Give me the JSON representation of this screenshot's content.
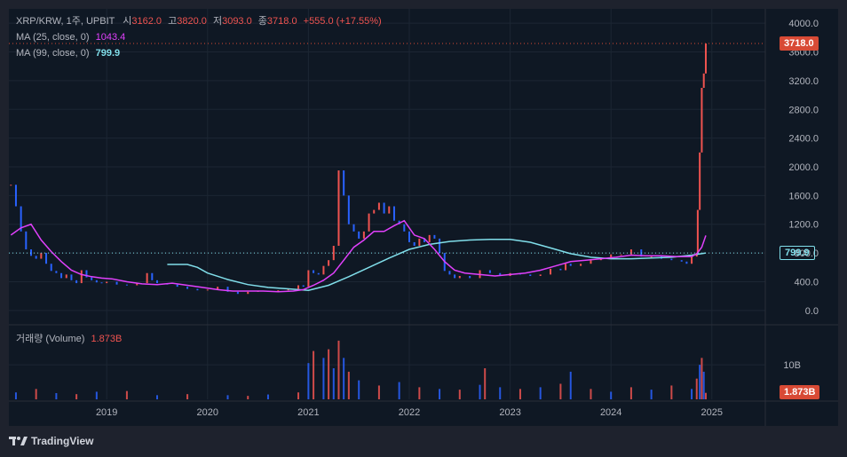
{
  "header": {
    "symbol": "XRP/KRW, 1주, UPBIT",
    "open_label": "시",
    "open": "3162.0",
    "high_label": "고",
    "high": "3820.0",
    "low_label": "저",
    "low": "3093.0",
    "close_label": "종",
    "close": "3718.0",
    "change": "+555.0 (+17.55%)",
    "ma25_label": "MA (25, close, 0)",
    "ma25_value": "1043.4",
    "ma99_label": "MA (99, close, 0)",
    "ma99_value": "799.9",
    "volume_label": "거래량 (Volume)",
    "volume_value": "1.873B"
  },
  "tags": {
    "last_price": "3718.0",
    "ma99": "799.9",
    "volume": "1.873B"
  },
  "footer": {
    "brand": "TradingView"
  },
  "colors": {
    "up": "#ef5350",
    "down": "#2962ff",
    "ma25": "#e040fb",
    "ma99": "#80deea",
    "background": "#0f1824",
    "grid": "#1c2633"
  },
  "chart_data": {
    "type": "candlestick",
    "timeframe": "1주",
    "price_axis": {
      "ticks": [
        "4000.0",
        "3600.0",
        "3200.0",
        "2800.0",
        "2400.0",
        "2000.0",
        "1600.0",
        "1200.0",
        "800.0",
        "400.0",
        "0.0"
      ],
      "range": [
        -200,
        4200
      ]
    },
    "volume_axis": {
      "ticks": [
        "10B"
      ],
      "range": [
        0,
        18
      ]
    },
    "time_axis": {
      "ticks": [
        "2019",
        "2020",
        "2021",
        "2022",
        "2023",
        "2024",
        "2025"
      ],
      "range": [
        2018.03,
        2025.53
      ]
    },
    "last_price": 3718.0,
    "price_series": {
      "x": [
        2018.05,
        2018.1,
        2018.15,
        2018.2,
        2018.25,
        2018.3,
        2018.35,
        2018.4,
        2018.45,
        2018.5,
        2018.55,
        2018.6,
        2018.65,
        2018.7,
        2018.75,
        2018.8,
        2018.85,
        2018.9,
        2018.95,
        2019.0,
        2019.1,
        2019.2,
        2019.3,
        2019.4,
        2019.45,
        2019.5,
        2019.6,
        2019.7,
        2019.8,
        2019.9,
        2020.0,
        2020.1,
        2020.2,
        2020.3,
        2020.4,
        2020.5,
        2020.6,
        2020.7,
        2020.8,
        2020.85,
        2020.9,
        2020.95,
        2021.0,
        2021.05,
        2021.1,
        2021.15,
        2021.2,
        2021.25,
        2021.3,
        2021.35,
        2021.4,
        2021.45,
        2021.5,
        2021.55,
        2021.6,
        2021.65,
        2021.7,
        2021.75,
        2021.8,
        2021.85,
        2021.9,
        2021.95,
        2022.0,
        2022.05,
        2022.1,
        2022.15,
        2022.2,
        2022.25,
        2022.3,
        2022.35,
        2022.4,
        2022.45,
        2022.5,
        2022.6,
        2022.7,
        2022.8,
        2022.9,
        2023.0,
        2023.1,
        2023.2,
        2023.3,
        2023.4,
        2023.5,
        2023.55,
        2023.6,
        2023.7,
        2023.8,
        2023.9,
        2024.0,
        2024.1,
        2024.2,
        2024.3,
        2024.4,
        2024.5,
        2024.6,
        2024.7,
        2024.75,
        2024.8,
        2024.85,
        2024.86,
        2024.88,
        2024.9,
        2024.92,
        2024.94
      ],
      "close": [
        1750,
        1450,
        1100,
        850,
        760,
        720,
        800,
        650,
        550,
        520,
        450,
        500,
        420,
        380,
        560,
        460,
        420,
        390,
        380,
        400,
        360,
        350,
        380,
        520,
        420,
        380,
        360,
        330,
        300,
        280,
        290,
        330,
        260,
        230,
        260,
        270,
        260,
        280,
        300,
        300,
        350,
        330,
        560,
        520,
        500,
        620,
        700,
        900,
        1950,
        1600,
        1200,
        1100,
        1000,
        1100,
        1350,
        1400,
        1500,
        1350,
        1450,
        1250,
        1200,
        1100,
        950,
        900,
        1000,
        950,
        1050,
        1000,
        800,
        550,
        500,
        450,
        480,
        450,
        560,
        520,
        480,
        520,
        500,
        480,
        500,
        580,
        560,
        650,
        620,
        650,
        700,
        720,
        780,
        780,
        850,
        750,
        750,
        720,
        700,
        680,
        650,
        750,
        800,
        1400,
        2200,
        3100,
        3300,
        3718
      ],
      "ma25": {
        "x": [
          2018.05,
          2018.15,
          2018.25,
          2018.35,
          2018.45,
          2018.55,
          2018.65,
          2018.75,
          2018.85,
          2018.95,
          2019.05,
          2019.2,
          2019.35,
          2019.5,
          2019.65,
          2019.8,
          2019.95,
          2020.1,
          2020.25,
          2020.4,
          2020.55,
          2020.7,
          2020.85,
          2020.95,
          2021.05,
          2021.15,
          2021.25,
          2021.35,
          2021.45,
          2021.55,
          2021.65,
          2021.75,
          2021.85,
          2021.95,
          2022.05,
          2022.15,
          2022.25,
          2022.35,
          2022.45,
          2022.55,
          2022.7,
          2022.85,
          2023.0,
          2023.15,
          2023.3,
          2023.45,
          2023.6,
          2023.75,
          2023.9,
          2024.05,
          2024.2,
          2024.35,
          2024.5,
          2024.65,
          2024.8,
          2024.85,
          2024.9,
          2024.94
        ],
        "y": [
          1050,
          1150,
          1200,
          980,
          820,
          680,
          560,
          500,
          470,
          450,
          440,
          400,
          370,
          360,
          380,
          350,
          320,
          290,
          270,
          270,
          270,
          260,
          270,
          290,
          350,
          420,
          520,
          700,
          880,
          980,
          1100,
          1100,
          1180,
          1250,
          1050,
          1000,
          850,
          680,
          560,
          520,
          500,
          480,
          500,
          520,
          560,
          620,
          680,
          700,
          720,
          740,
          770,
          760,
          760,
          750,
          750,
          790,
          880,
          1043
        ]
      },
      "ma99": {
        "x": [
          2019.6,
          2019.8,
          2019.9,
          2020.0,
          2020.2,
          2020.4,
          2020.6,
          2020.8,
          2021.0,
          2021.2,
          2021.4,
          2021.6,
          2021.8,
          2022.0,
          2022.2,
          2022.4,
          2022.6,
          2022.8,
          2023.0,
          2023.2,
          2023.4,
          2023.6,
          2023.8,
          2024.0,
          2024.2,
          2024.4,
          2024.6,
          2024.8,
          2024.94
        ],
        "y": [
          640,
          640,
          600,
          520,
          430,
          360,
          320,
          300,
          280,
          350,
          470,
          600,
          730,
          850,
          920,
          960,
          980,
          990,
          990,
          950,
          870,
          790,
          740,
          720,
          720,
          730,
          740,
          770,
          800
        ]
      }
    },
    "volume_series": {
      "x": [
        2018.1,
        2018.3,
        2018.5,
        2018.7,
        2018.9,
        2019.2,
        2019.5,
        2019.8,
        2020.2,
        2020.4,
        2020.6,
        2020.9,
        2021.0,
        2021.05,
        2021.15,
        2021.2,
        2021.25,
        2021.3,
        2021.35,
        2021.4,
        2021.5,
        2021.7,
        2021.9,
        2022.1,
        2022.3,
        2022.5,
        2022.7,
        2022.75,
        2022.9,
        2023.1,
        2023.3,
        2023.5,
        2023.6,
        2023.8,
        2024.0,
        2024.2,
        2024.4,
        2024.6,
        2024.8,
        2024.85,
        2024.88,
        2024.9,
        2024.92,
        2024.94
      ],
      "values_billions": [
        2.0,
        3.0,
        1.8,
        1.5,
        2.2,
        2.4,
        1.2,
        1.5,
        1.2,
        1.0,
        1.4,
        2.0,
        10.5,
        14.0,
        12.0,
        14.5,
        9.0,
        17.0,
        12.0,
        8.0,
        5.5,
        4.0,
        5.0,
        3.5,
        3.0,
        2.8,
        4.2,
        9.0,
        3.5,
        3.0,
        3.5,
        4.5,
        8.0,
        3.0,
        2.2,
        3.5,
        2.8,
        4.0,
        3.0,
        6.0,
        10.0,
        12.0,
        8.0,
        1.873
      ]
    }
  }
}
